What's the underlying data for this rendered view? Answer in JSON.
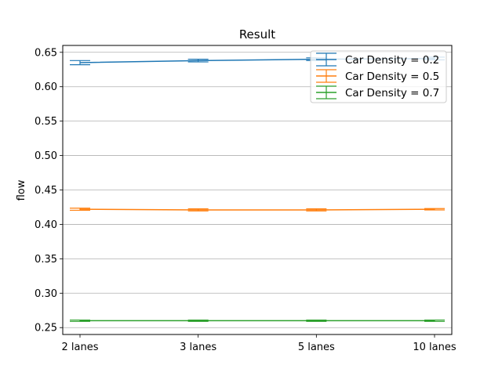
{
  "chart_data": {
    "type": "line",
    "title": "Result",
    "xlabel": "",
    "ylabel": "flow",
    "categories": [
      "2 lanes",
      "3 lanes",
      "5 lanes",
      "10 lanes"
    ],
    "ylim": [
      0.24,
      0.66
    ],
    "yticks": [
      0.25,
      0.3,
      0.35,
      0.4,
      0.45,
      0.5,
      0.55,
      0.6,
      0.65
    ],
    "ytick_labels": [
      "0.25",
      "0.30",
      "0.35",
      "0.40",
      "0.45",
      "0.50",
      "0.55",
      "0.60",
      "0.65"
    ],
    "grid": "horizontal",
    "legend_position": "top-right",
    "error_bars": true,
    "series": [
      {
        "name": "Car Density = 0.2",
        "color": "#1f77b4",
        "values": [
          0.635,
          0.638,
          0.64,
          0.641
        ],
        "errors": [
          0.003,
          0.002,
          0.002,
          0.002
        ]
      },
      {
        "name": "Car Density = 0.5",
        "color": "#ff7f0e",
        "values": [
          0.422,
          0.421,
          0.421,
          0.422
        ],
        "errors": [
          0.0015,
          0.0015,
          0.0015,
          0.001
        ]
      },
      {
        "name": "Car Density = 0.7",
        "color": "#2ca02c",
        "values": [
          0.26,
          0.26,
          0.26,
          0.26
        ],
        "errors": [
          0.001,
          0.001,
          0.001,
          0.001
        ]
      }
    ]
  }
}
